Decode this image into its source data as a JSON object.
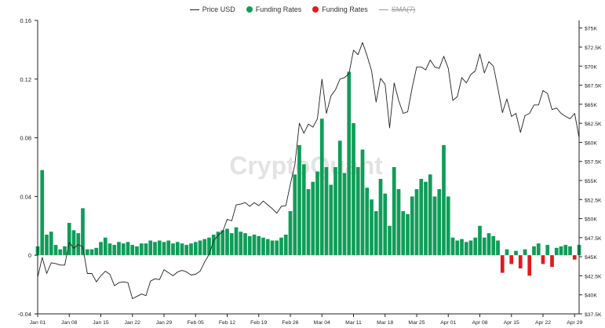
{
  "legend": {
    "items": [
      {
        "label": "Price USD",
        "color": "#222222",
        "marker": "line",
        "enabled": true
      },
      {
        "label": "Funding Rates",
        "color": "#0f9d58",
        "marker": "dot",
        "enabled": true
      },
      {
        "label": "Funding Rates",
        "color": "#e31a1c",
        "marker": "dot",
        "enabled": true
      },
      {
        "label": "SMA(7)",
        "color": "#9a9a9a",
        "marker": "line",
        "enabled": false
      }
    ]
  },
  "watermark": "CryptoQuant",
  "chart_data": {
    "type": "bar",
    "x_ticks": [
      "Jan 01",
      "Jan 08",
      "Jan 15",
      "Jan 22",
      "Jan 29",
      "Feb 05",
      "Feb 12",
      "Feb 19",
      "Feb 26",
      "Mar 04",
      "Mar 11",
      "Mar 18",
      "Mar 25",
      "Apr 01",
      "Apr 08",
      "Apr 15",
      "Apr 22",
      "Apr 29"
    ],
    "xlim": [
      "2024-01-01",
      "2024-04-30"
    ],
    "left_axis": {
      "ticks": [
        "0.16",
        "0.12",
        "0.08",
        "0.04",
        "0",
        "-0.04"
      ],
      "ylim": [
        -0.04,
        0.16
      ]
    },
    "right_axis": {
      "ticks": [
        "$75K",
        "$72.5K",
        "$70K",
        "$67.5K",
        "$65K",
        "$62.5K",
        "$60K",
        "$57.5K",
        "$55K",
        "$52.5K",
        "$50K",
        "$47.5K",
        "$45K",
        "$42.5K",
        "$40K",
        "$37.5K"
      ],
      "ylim": [
        37500,
        76000
      ]
    },
    "colors": {
      "positive": "#0f9d58",
      "negative": "#e31a1c",
      "price": "#222222"
    },
    "series": [
      {
        "name": "Price USD",
        "axis": "right",
        "kind": "line",
        "points": [
          [
            "2024-01-01",
            42300
          ],
          [
            "2024-01-02",
            44900
          ],
          [
            "2024-01-03",
            42800
          ],
          [
            "2024-01-04",
            44200
          ],
          [
            "2024-01-05",
            44100
          ],
          [
            "2024-01-06",
            43900
          ],
          [
            "2024-01-07",
            43900
          ],
          [
            "2024-01-08",
            46900
          ],
          [
            "2024-01-09",
            46100
          ],
          [
            "2024-01-10",
            46600
          ],
          [
            "2024-01-11",
            46300
          ],
          [
            "2024-01-12",
            42800
          ],
          [
            "2024-01-13",
            42800
          ],
          [
            "2024-01-14",
            41700
          ],
          [
            "2024-01-15",
            42500
          ],
          [
            "2024-01-16",
            43100
          ],
          [
            "2024-01-17",
            42700
          ],
          [
            "2024-01-18",
            41200
          ],
          [
            "2024-01-19",
            41600
          ],
          [
            "2024-01-20",
            41700
          ],
          [
            "2024-01-21",
            41600
          ],
          [
            "2024-01-22",
            39500
          ],
          [
            "2024-01-23",
            39800
          ],
          [
            "2024-01-24",
            40100
          ],
          [
            "2024-01-25",
            39900
          ],
          [
            "2024-01-26",
            41800
          ],
          [
            "2024-01-27",
            42100
          ],
          [
            "2024-01-28",
            42000
          ],
          [
            "2024-01-29",
            43300
          ],
          [
            "2024-01-30",
            42900
          ],
          [
            "2024-01-31",
            42500
          ],
          [
            "2024-02-01",
            43000
          ],
          [
            "2024-02-02",
            43200
          ],
          [
            "2024-02-03",
            43000
          ],
          [
            "2024-02-04",
            42600
          ],
          [
            "2024-02-05",
            42700
          ],
          [
            "2024-02-06",
            43100
          ],
          [
            "2024-02-07",
            44300
          ],
          [
            "2024-02-08",
            45300
          ],
          [
            "2024-02-09",
            47100
          ],
          [
            "2024-02-10",
            47800
          ],
          [
            "2024-02-11",
            48300
          ],
          [
            "2024-02-12",
            49900
          ],
          [
            "2024-02-13",
            49700
          ],
          [
            "2024-02-14",
            51800
          ],
          [
            "2024-02-15",
            51900
          ],
          [
            "2024-02-16",
            52100
          ],
          [
            "2024-02-17",
            51600
          ],
          [
            "2024-02-18",
            52100
          ],
          [
            "2024-02-19",
            51700
          ],
          [
            "2024-02-20",
            52300
          ],
          [
            "2024-02-21",
            51800
          ],
          [
            "2024-02-22",
            51300
          ],
          [
            "2024-02-23",
            50700
          ],
          [
            "2024-02-24",
            51600
          ],
          [
            "2024-02-25",
            51700
          ],
          [
            "2024-02-26",
            54500
          ],
          [
            "2024-02-27",
            57100
          ],
          [
            "2024-02-28",
            62500
          ],
          [
            "2024-02-29",
            61200
          ],
          [
            "2024-03-01",
            62400
          ],
          [
            "2024-03-02",
            62000
          ],
          [
            "2024-03-03",
            63100
          ],
          [
            "2024-03-04",
            68300
          ],
          [
            "2024-03-05",
            63800
          ],
          [
            "2024-03-06",
            66100
          ],
          [
            "2024-03-07",
            66900
          ],
          [
            "2024-03-08",
            68300
          ],
          [
            "2024-03-09",
            68500
          ],
          [
            "2024-03-10",
            69000
          ],
          [
            "2024-03-11",
            72100
          ],
          [
            "2024-03-12",
            71500
          ],
          [
            "2024-03-13",
            73100
          ],
          [
            "2024-03-14",
            71400
          ],
          [
            "2024-03-15",
            69400
          ],
          [
            "2024-03-16",
            65300
          ],
          [
            "2024-03-17",
            68400
          ],
          [
            "2024-03-18",
            67600
          ],
          [
            "2024-03-19",
            61900
          ],
          [
            "2024-03-20",
            67800
          ],
          [
            "2024-03-21",
            65500
          ],
          [
            "2024-03-22",
            63800
          ],
          [
            "2024-03-23",
            64000
          ],
          [
            "2024-03-24",
            67200
          ],
          [
            "2024-03-25",
            69900
          ],
          [
            "2024-03-26",
            69900
          ],
          [
            "2024-03-27",
            69500
          ],
          [
            "2024-03-28",
            70800
          ],
          [
            "2024-03-29",
            69900
          ],
          [
            "2024-03-30",
            69700
          ],
          [
            "2024-03-31",
            71300
          ],
          [
            "2024-04-01",
            69700
          ],
          [
            "2024-04-02",
            65500
          ],
          [
            "2024-04-03",
            66000
          ],
          [
            "2024-04-04",
            68500
          ],
          [
            "2024-04-05",
            67800
          ],
          [
            "2024-04-06",
            68900
          ],
          [
            "2024-04-07",
            69400
          ],
          [
            "2024-04-08",
            71600
          ],
          [
            "2024-04-09",
            69100
          ],
          [
            "2024-04-10",
            70600
          ],
          [
            "2024-04-11",
            70000
          ],
          [
            "2024-04-12",
            67100
          ],
          [
            "2024-04-13",
            63900
          ],
          [
            "2024-04-14",
            65700
          ],
          [
            "2024-04-15",
            63400
          ],
          [
            "2024-04-16",
            63800
          ],
          [
            "2024-04-17",
            61300
          ],
          [
            "2024-04-18",
            63500
          ],
          [
            "2024-04-19",
            63800
          ],
          [
            "2024-04-20",
            64900
          ],
          [
            "2024-04-21",
            64900
          ],
          [
            "2024-04-22",
            66800
          ],
          [
            "2024-04-23",
            66400
          ],
          [
            "2024-04-24",
            64300
          ],
          [
            "2024-04-25",
            64500
          ],
          [
            "2024-04-26",
            63800
          ],
          [
            "2024-04-27",
            63400
          ],
          [
            "2024-04-28",
            63100
          ],
          [
            "2024-04-29",
            63800
          ],
          [
            "2024-04-30",
            60600
          ]
        ]
      },
      {
        "name": "Funding Rates",
        "axis": "left",
        "kind": "bar",
        "points": [
          [
            "2024-01-01",
            0.006
          ],
          [
            "2024-01-02",
            0.058
          ],
          [
            "2024-01-03",
            0.014
          ],
          [
            "2024-01-04",
            0.016
          ],
          [
            "2024-01-05",
            0.007
          ],
          [
            "2024-01-06",
            0.004
          ],
          [
            "2024-01-07",
            0.006
          ],
          [
            "2024-01-08",
            0.022
          ],
          [
            "2024-01-09",
            0.017
          ],
          [
            "2024-01-10",
            0.015
          ],
          [
            "2024-01-11",
            0.032
          ],
          [
            "2024-01-12",
            0.004
          ],
          [
            "2024-01-13",
            0.004
          ],
          [
            "2024-01-14",
            0.005
          ],
          [
            "2024-01-15",
            0.009
          ],
          [
            "2024-01-16",
            0.012
          ],
          [
            "2024-01-17",
            0.008
          ],
          [
            "2024-01-18",
            0.007
          ],
          [
            "2024-01-19",
            0.009
          ],
          [
            "2024-01-20",
            0.008
          ],
          [
            "2024-01-21",
            0.009
          ],
          [
            "2024-01-22",
            0.007
          ],
          [
            "2024-01-23",
            0.006
          ],
          [
            "2024-01-24",
            0.008
          ],
          [
            "2024-01-25",
            0.008
          ],
          [
            "2024-01-26",
            0.01
          ],
          [
            "2024-01-27",
            0.009
          ],
          [
            "2024-01-28",
            0.01
          ],
          [
            "2024-01-29",
            0.009
          ],
          [
            "2024-01-30",
            0.01
          ],
          [
            "2024-01-31",
            0.008
          ],
          [
            "2024-02-01",
            0.009
          ],
          [
            "2024-02-02",
            0.008
          ],
          [
            "2024-02-03",
            0.007
          ],
          [
            "2024-02-04",
            0.008
          ],
          [
            "2024-02-05",
            0.009
          ],
          [
            "2024-02-06",
            0.01
          ],
          [
            "2024-02-07",
            0.011
          ],
          [
            "2024-02-08",
            0.012
          ],
          [
            "2024-02-09",
            0.014
          ],
          [
            "2024-02-10",
            0.016
          ],
          [
            "2024-02-11",
            0.017
          ],
          [
            "2024-02-12",
            0.018
          ],
          [
            "2024-02-13",
            0.015
          ],
          [
            "2024-02-14",
            0.019
          ],
          [
            "2024-02-15",
            0.016
          ],
          [
            "2024-02-16",
            0.015
          ],
          [
            "2024-02-17",
            0.013
          ],
          [
            "2024-02-18",
            0.014
          ],
          [
            "2024-02-19",
            0.013
          ],
          [
            "2024-02-20",
            0.012
          ],
          [
            "2024-02-21",
            0.011
          ],
          [
            "2024-02-22",
            0.01
          ],
          [
            "2024-02-23",
            0.01
          ],
          [
            "2024-02-24",
            0.012
          ],
          [
            "2024-02-25",
            0.014
          ],
          [
            "2024-02-26",
            0.03
          ],
          [
            "2024-02-27",
            0.055
          ],
          [
            "2024-02-28",
            0.075
          ],
          [
            "2024-02-29",
            0.062
          ],
          [
            "2024-03-01",
            0.045
          ],
          [
            "2024-03-02",
            0.05
          ],
          [
            "2024-03-03",
            0.057
          ],
          [
            "2024-03-04",
            0.093
          ],
          [
            "2024-03-05",
            0.06
          ],
          [
            "2024-03-06",
            0.048
          ],
          [
            "2024-03-07",
            0.06
          ],
          [
            "2024-03-08",
            0.078
          ],
          [
            "2024-03-09",
            0.056
          ],
          [
            "2024-03-10",
            0.125
          ],
          [
            "2024-03-11",
            0.09
          ],
          [
            "2024-03-12",
            0.06
          ],
          [
            "2024-03-13",
            0.072
          ],
          [
            "2024-03-14",
            0.046
          ],
          [
            "2024-03-15",
            0.038
          ],
          [
            "2024-03-16",
            0.03
          ],
          [
            "2024-03-17",
            0.052
          ],
          [
            "2024-03-18",
            0.042
          ],
          [
            "2024-03-19",
            0.02
          ],
          [
            "2024-03-20",
            0.06
          ],
          [
            "2024-03-21",
            0.045
          ],
          [
            "2024-03-22",
            0.03
          ],
          [
            "2024-03-23",
            0.028
          ],
          [
            "2024-03-24",
            0.04
          ],
          [
            "2024-03-25",
            0.045
          ],
          [
            "2024-03-26",
            0.052
          ],
          [
            "2024-03-27",
            0.05
          ],
          [
            "2024-03-28",
            0.055
          ],
          [
            "2024-03-29",
            0.04
          ],
          [
            "2024-03-30",
            0.045
          ],
          [
            "2024-03-31",
            0.075
          ],
          [
            "2024-04-01",
            0.04
          ],
          [
            "2024-04-02",
            0.012
          ],
          [
            "2024-04-03",
            0.01
          ],
          [
            "2024-04-04",
            0.011
          ],
          [
            "2024-04-05",
            0.009
          ],
          [
            "2024-04-06",
            0.01
          ],
          [
            "2024-04-07",
            0.012
          ],
          [
            "2024-04-08",
            0.02
          ],
          [
            "2024-04-09",
            0.012
          ],
          [
            "2024-04-10",
            0.015
          ],
          [
            "2024-04-11",
            0.013
          ],
          [
            "2024-04-12",
            0.01
          ],
          [
            "2024-04-13",
            -0.012
          ],
          [
            "2024-04-14",
            0.004
          ],
          [
            "2024-04-15",
            -0.006
          ],
          [
            "2024-04-16",
            0.003
          ],
          [
            "2024-04-17",
            -0.009
          ],
          [
            "2024-04-18",
            0.004
          ],
          [
            "2024-04-19",
            -0.014
          ],
          [
            "2024-04-20",
            0.006
          ],
          [
            "2024-04-21",
            0.008
          ],
          [
            "2024-04-22",
            -0.006
          ],
          [
            "2024-04-23",
            0.007
          ],
          [
            "2024-04-24",
            -0.008
          ],
          [
            "2024-04-25",
            0.005
          ],
          [
            "2024-04-26",
            0.006
          ],
          [
            "2024-04-27",
            0.007
          ],
          [
            "2024-04-28",
            0.006
          ],
          [
            "2024-04-29",
            -0.003
          ],
          [
            "2024-04-30",
            0.007
          ]
        ]
      }
    ]
  }
}
